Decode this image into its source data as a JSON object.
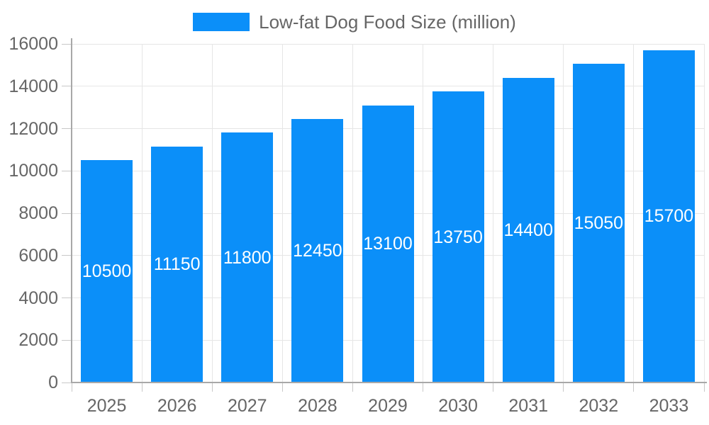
{
  "chart_data": {
    "type": "bar",
    "title": "",
    "legend": {
      "label": "Low-fat Dog Food Size (million)",
      "position": "top"
    },
    "categories": [
      "2025",
      "2026",
      "2027",
      "2028",
      "2029",
      "2030",
      "2031",
      "2032",
      "2033"
    ],
    "series": [
      {
        "name": "Low-fat Dog Food Size (million)",
        "values": [
          10500,
          11150,
          11800,
          12450,
          13100,
          13750,
          14400,
          15050,
          15700
        ]
      }
    ],
    "xlabel": "",
    "ylabel": "",
    "ylim": [
      0,
      16000
    ],
    "yticks": [
      0,
      2000,
      4000,
      6000,
      8000,
      10000,
      12000,
      14000,
      16000
    ],
    "grid": true,
    "data_labels": "inside-center",
    "colors": {
      "bar": "#0b8ff9",
      "bar_label_text": "#ffffff",
      "axis_text": "#666666",
      "grid_line": "#e6e6e6",
      "axis_line": "#a8a8a8",
      "tick_line": "#c8c8c8"
    }
  }
}
